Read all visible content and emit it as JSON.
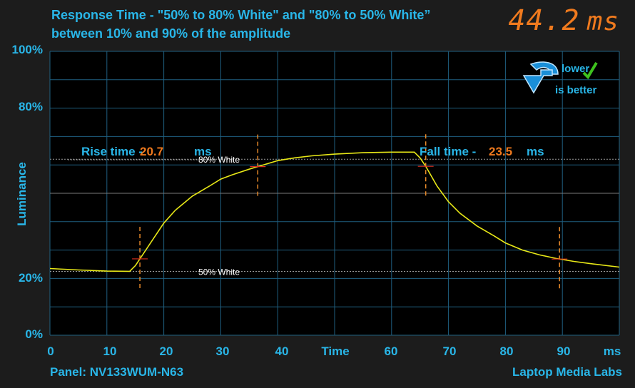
{
  "header": {
    "title": "Response Time - \"50% to 80% White\" and \"80% to 50% White” between 10% and 90% of the amplitude",
    "total_value": "44.2",
    "total_unit": "ms"
  },
  "badge": {
    "line1": "lower",
    "line2": "is better",
    "icon": "down-arrow-icon",
    "check": "checkmark-icon"
  },
  "footer": {
    "panel": "Panel: NV133WUM-N63",
    "brand": "Laptop Media Labs"
  },
  "colors": {
    "accent": "#29b6e8",
    "value": "#f07a1e",
    "trace": "#e8e817",
    "marker": "#e0301e",
    "guide": "#e88a2a"
  },
  "chart_data": {
    "type": "line",
    "ylabel": "Luminance",
    "xlabel": "Time",
    "x_unit": "ms",
    "xlim": [
      0,
      100
    ],
    "ylim": [
      0,
      100
    ],
    "x_ticks": [
      "0",
      "10",
      "20",
      "30",
      "40",
      "Time",
      "60",
      "70",
      "80",
      "90",
      "ms"
    ],
    "y_ticks": [
      "0%",
      "20%",
      "80%",
      "100%"
    ],
    "grid": true,
    "annotations": {
      "rise_label": "Rise time -",
      "rise_value": "20.7",
      "rise_unit": "ms",
      "fall_label": "Fall time -",
      "fall_value": "23.5",
      "fall_unit": "ms",
      "level_high": "80% White",
      "level_low": "50% White"
    },
    "rise_markers_ms": [
      15.8,
      36.5
    ],
    "fall_markers_ms": [
      66.0,
      89.5
    ],
    "series": [
      {
        "x": [
          0,
          5,
          10,
          14,
          15,
          16,
          18,
          20,
          22,
          25,
          28,
          30,
          32,
          35,
          38,
          40,
          43,
          46,
          50,
          55,
          60,
          64,
          65,
          66,
          67,
          68,
          70,
          72,
          75,
          78,
          80,
          83,
          86,
          89,
          92,
          95,
          100
        ],
        "y": [
          23.5,
          23.0,
          22.6,
          22.5,
          24.5,
          27.5,
          33.5,
          39.5,
          44.0,
          49.0,
          52.5,
          55.0,
          56.5,
          58.5,
          60.3,
          61.5,
          62.5,
          63.2,
          63.8,
          64.3,
          64.5,
          64.5,
          62.5,
          59.5,
          56.0,
          52.5,
          47.0,
          43.0,
          38.5,
          35.0,
          32.5,
          30.0,
          28.3,
          27.0,
          26.0,
          25.2,
          24.0
        ]
      }
    ]
  }
}
